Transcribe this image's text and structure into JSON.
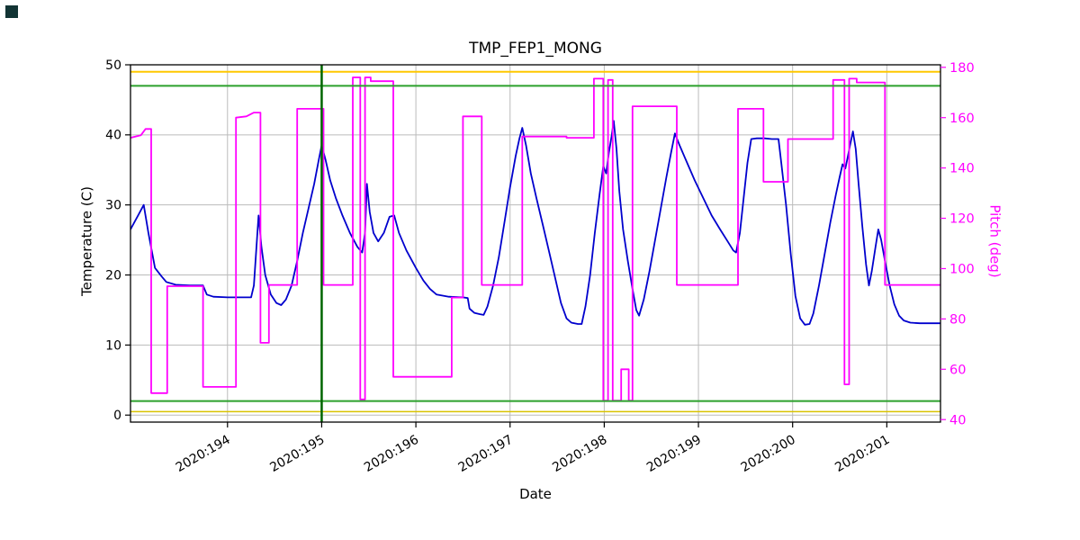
{
  "decorations": {
    "corner_marker_color": "#123434"
  },
  "chart_data": {
    "type": "line",
    "title": "TMP_FEP1_MONG",
    "xlabel": "Date",
    "ylabel_left": "Temperature (C)",
    "ylabel_right": "Pitch (deg)",
    "grid": true,
    "legend": "none",
    "xlim": [
      192.97,
      201.57
    ],
    "ylim_left": [
      -1,
      50
    ],
    "ylim_right": [
      39,
      181
    ],
    "x_ticks": [
      {
        "value": 194,
        "label": "2020:194"
      },
      {
        "value": 195,
        "label": "2020:195"
      },
      {
        "value": 196,
        "label": "2020:196"
      },
      {
        "value": 197,
        "label": "2020:197"
      },
      {
        "value": 198,
        "label": "2020:198"
      },
      {
        "value": 199,
        "label": "2020:199"
      },
      {
        "value": 200,
        "label": "2020:200"
      },
      {
        "value": 201,
        "label": "2020:201"
      }
    ],
    "y_ticks_left": [
      0,
      10,
      20,
      30,
      40,
      50
    ],
    "y_ticks_right": [
      40,
      60,
      80,
      100,
      120,
      140,
      160,
      180
    ],
    "colors": {
      "temperature_line": "#0000cd",
      "pitch_line": "#ff00ff",
      "upper_yellow_limit": "#ffc800",
      "lower_yellow_limit": "#d9c300",
      "green_limit": "#2ca02c",
      "green_vline": "#006400",
      "grid": "#bbbbbb",
      "axis": "#000000",
      "right_axis_text": "#ff00ff"
    },
    "limit_lines": [
      {
        "name": "upper-yellow",
        "axis": "left",
        "y": 49.0,
        "color": "#ffc800",
        "width": 2
      },
      {
        "name": "upper-green",
        "axis": "left",
        "y": 47.0,
        "color": "#2ca02c",
        "width": 2
      },
      {
        "name": "lower-green",
        "axis": "left",
        "y": 2.0,
        "color": "#2ca02c",
        "width": 2
      },
      {
        "name": "lower-yellow",
        "axis": "left",
        "y": 0.5,
        "color": "#d9c300",
        "width": 1.5
      }
    ],
    "vertical_lines": [
      {
        "name": "event",
        "x": 195.0,
        "color": "#006400",
        "width": 2.5
      }
    ],
    "series": [
      {
        "name": "Temperature (C)",
        "data_name": "temperature-series",
        "axis": "left",
        "color": "#0000cd",
        "points": [
          [
            192.97,
            26.5
          ],
          [
            193.05,
            28.5
          ],
          [
            193.11,
            30
          ],
          [
            193.16,
            26
          ],
          [
            193.23,
            21
          ],
          [
            193.3,
            19.8
          ],
          [
            193.35,
            19
          ],
          [
            193.45,
            18.6
          ],
          [
            193.6,
            18.5
          ],
          [
            193.74,
            18.5
          ],
          [
            193.78,
            17.2
          ],
          [
            193.85,
            16.9
          ],
          [
            194,
            16.8
          ],
          [
            194.25,
            16.8
          ],
          [
            194.28,
            18.5
          ],
          [
            194.33,
            28.5
          ],
          [
            194.36,
            24
          ],
          [
            194.4,
            20
          ],
          [
            194.46,
            17.2
          ],
          [
            194.52,
            16
          ],
          [
            194.57,
            15.7
          ],
          [
            194.62,
            16.5
          ],
          [
            194.68,
            18.5
          ],
          [
            194.74,
            22
          ],
          [
            194.8,
            26
          ],
          [
            194.86,
            29.5
          ],
          [
            194.92,
            33
          ],
          [
            194.97,
            36.5
          ],
          [
            195,
            38.5
          ],
          [
            195.04,
            36.5
          ],
          [
            195.09,
            33.5
          ],
          [
            195.15,
            31
          ],
          [
            195.22,
            28.5
          ],
          [
            195.3,
            26
          ],
          [
            195.38,
            24
          ],
          [
            195.43,
            23.2
          ],
          [
            195.46,
            26
          ],
          [
            195.48,
            33
          ],
          [
            195.51,
            29
          ],
          [
            195.55,
            26
          ],
          [
            195.6,
            24.8
          ],
          [
            195.66,
            26
          ],
          [
            195.72,
            28.3
          ],
          [
            195.77,
            28.5
          ],
          [
            195.82,
            26
          ],
          [
            195.9,
            23.5
          ],
          [
            196,
            21
          ],
          [
            196.08,
            19.2
          ],
          [
            196.15,
            18
          ],
          [
            196.22,
            17.2
          ],
          [
            196.35,
            16.9
          ],
          [
            196.5,
            16.8
          ],
          [
            196.55,
            16.7
          ],
          [
            196.57,
            15.2
          ],
          [
            196.62,
            14.6
          ],
          [
            196.68,
            14.4
          ],
          [
            196.72,
            14.3
          ],
          [
            196.76,
            15.5
          ],
          [
            196.82,
            18.5
          ],
          [
            196.88,
            22.5
          ],
          [
            196.94,
            27.5
          ],
          [
            197,
            32.5
          ],
          [
            197.06,
            37
          ],
          [
            197.1,
            39.5
          ],
          [
            197.13,
            41
          ],
          [
            197.17,
            38.5
          ],
          [
            197.22,
            34.5
          ],
          [
            197.28,
            31
          ],
          [
            197.35,
            27
          ],
          [
            197.42,
            23
          ],
          [
            197.48,
            19.5
          ],
          [
            197.54,
            16
          ],
          [
            197.6,
            13.8
          ],
          [
            197.65,
            13.2
          ],
          [
            197.72,
            13
          ],
          [
            197.76,
            13
          ],
          [
            197.8,
            15.5
          ],
          [
            197.85,
            20
          ],
          [
            197.9,
            26
          ],
          [
            197.95,
            31.5
          ],
          [
            197.99,
            35.5
          ],
          [
            198.02,
            34.5
          ],
          [
            198.05,
            37.5
          ],
          [
            198.08,
            40
          ],
          [
            198.1,
            42
          ],
          [
            198.13,
            38
          ],
          [
            198.16,
            32
          ],
          [
            198.2,
            26.5
          ],
          [
            198.25,
            22
          ],
          [
            198.3,
            18
          ],
          [
            198.34,
            15
          ],
          [
            198.37,
            14.2
          ],
          [
            198.42,
            16.5
          ],
          [
            198.48,
            20.5
          ],
          [
            198.54,
            25
          ],
          [
            198.6,
            29.5
          ],
          [
            198.66,
            34
          ],
          [
            198.71,
            37.5
          ],
          [
            198.75,
            40.2
          ],
          [
            198.8,
            38.5
          ],
          [
            198.88,
            36
          ],
          [
            198.96,
            33.5
          ],
          [
            199.05,
            31
          ],
          [
            199.14,
            28.5
          ],
          [
            199.23,
            26.5
          ],
          [
            199.31,
            24.8
          ],
          [
            199.37,
            23.5
          ],
          [
            199.4,
            23.2
          ],
          [
            199.44,
            26
          ],
          [
            199.48,
            31
          ],
          [
            199.52,
            36
          ],
          [
            199.56,
            39.4
          ],
          [
            199.62,
            39.5
          ],
          [
            199.7,
            39.5
          ],
          [
            199.78,
            39.4
          ],
          [
            199.85,
            39.4
          ],
          [
            199.88,
            36
          ],
          [
            199.93,
            30
          ],
          [
            199.98,
            23
          ],
          [
            200.03,
            17
          ],
          [
            200.08,
            13.8
          ],
          [
            200.13,
            12.9
          ],
          [
            200.18,
            13
          ],
          [
            200.22,
            14.5
          ],
          [
            200.28,
            18.5
          ],
          [
            200.34,
            23
          ],
          [
            200.4,
            27.5
          ],
          [
            200.46,
            31.5
          ],
          [
            200.5,
            34
          ],
          [
            200.53,
            35.8
          ],
          [
            200.56,
            35.2
          ],
          [
            200.58,
            36.5
          ],
          [
            200.61,
            38.5
          ],
          [
            200.64,
            40.5
          ],
          [
            200.67,
            38
          ],
          [
            200.7,
            33
          ],
          [
            200.74,
            27
          ],
          [
            200.78,
            21.5
          ],
          [
            200.81,
            18.5
          ],
          [
            200.84,
            20.5
          ],
          [
            200.88,
            24
          ],
          [
            200.91,
            26.5
          ],
          [
            200.94,
            25
          ],
          [
            200.98,
            22
          ],
          [
            201.03,
            18.5
          ],
          [
            201.08,
            15.8
          ],
          [
            201.13,
            14.2
          ],
          [
            201.18,
            13.5
          ],
          [
            201.25,
            13.2
          ],
          [
            201.35,
            13.1
          ],
          [
            201.57,
            13.1
          ]
        ]
      },
      {
        "name": "Pitch (deg)",
        "data_name": "pitch-series",
        "axis": "right",
        "color": "#ff00ff",
        "points": [
          [
            192.97,
            152
          ],
          [
            193.08,
            153
          ],
          [
            193.13,
            155.5
          ],
          [
            193.19,
            155.5
          ],
          [
            193.19,
            50.5
          ],
          [
            193.36,
            50.5
          ],
          [
            193.36,
            93
          ],
          [
            193.74,
            93
          ],
          [
            193.74,
            53
          ],
          [
            194.09,
            53
          ],
          [
            194.09,
            160
          ],
          [
            194.2,
            160.5
          ],
          [
            194.28,
            162
          ],
          [
            194.35,
            162
          ],
          [
            194.35,
            70.5
          ],
          [
            194.44,
            70.5
          ],
          [
            194.44,
            93.5
          ],
          [
            194.74,
            93.5
          ],
          [
            194.74,
            163.5
          ],
          [
            195.02,
            163.5
          ],
          [
            195.02,
            93.5
          ],
          [
            195.33,
            93.5
          ],
          [
            195.33,
            176
          ],
          [
            195.41,
            176
          ],
          [
            195.41,
            48
          ],
          [
            195.46,
            48
          ],
          [
            195.46,
            176
          ],
          [
            195.52,
            176
          ],
          [
            195.52,
            174.5
          ],
          [
            195.76,
            174.5
          ],
          [
            195.76,
            57
          ],
          [
            196.38,
            57
          ],
          [
            196.38,
            88.5
          ],
          [
            196.5,
            88.5
          ],
          [
            196.5,
            160.5
          ],
          [
            196.7,
            160.5
          ],
          [
            196.7,
            93.5
          ],
          [
            197.13,
            93.5
          ],
          [
            197.13,
            152.5
          ],
          [
            197.6,
            152.5
          ],
          [
            197.6,
            152
          ],
          [
            197.89,
            152
          ],
          [
            197.89,
            175.5
          ],
          [
            197.99,
            175.5
          ],
          [
            197.99,
            47.5
          ],
          [
            198.04,
            47.5
          ],
          [
            198.04,
            175
          ],
          [
            198.09,
            175
          ],
          [
            198.09,
            47.5
          ],
          [
            198.18,
            47.5
          ],
          [
            198.18,
            60
          ],
          [
            198.26,
            60
          ],
          [
            198.26,
            47.5
          ],
          [
            198.3,
            47.5
          ],
          [
            198.3,
            164.5
          ],
          [
            198.77,
            164.5
          ],
          [
            198.77,
            93.5
          ],
          [
            199.42,
            93.5
          ],
          [
            199.42,
            163.5
          ],
          [
            199.69,
            163.5
          ],
          [
            199.69,
            134.5
          ],
          [
            199.95,
            134.5
          ],
          [
            199.95,
            151.5
          ],
          [
            200.43,
            151.5
          ],
          [
            200.43,
            175
          ],
          [
            200.55,
            175
          ],
          [
            200.55,
            54
          ],
          [
            200.6,
            54
          ],
          [
            200.6,
            175.5
          ],
          [
            200.68,
            175.5
          ],
          [
            200.68,
            174
          ],
          [
            200.98,
            174
          ],
          [
            200.98,
            93.5
          ],
          [
            201.57,
            93.5
          ]
        ]
      }
    ]
  }
}
